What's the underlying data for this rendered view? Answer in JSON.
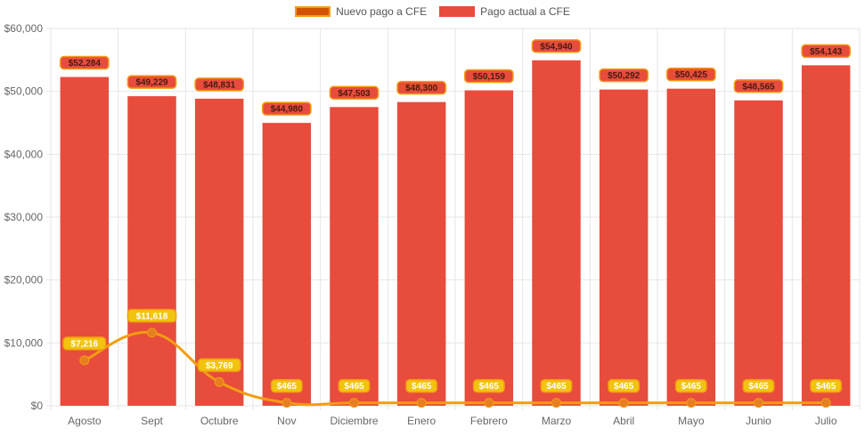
{
  "legend": {
    "line_label": "Nuevo pago a CFE",
    "bar_label": "Pago actual a CFE"
  },
  "colors": {
    "bar": "#e74c3c",
    "line": "#f39c12",
    "line_point": "#e67e22",
    "legend_line_fill": "#d35400",
    "bar_label_bg": "#e74c3c",
    "line_label_bg": "#f1c40f",
    "grid": "#e6e6e6",
    "axis_text": "#666666"
  },
  "chart_data": {
    "type": "bar",
    "categories": [
      "Agosto",
      "Sept",
      "Octubre",
      "Nov",
      "Diciembre",
      "Enero",
      "Febrero",
      "Marzo",
      "Abril",
      "Mayo",
      "Junio",
      "Julio"
    ],
    "series": [
      {
        "name": "Pago actual a CFE",
        "type": "bar",
        "values": [
          52284,
          49229,
          48831,
          44980,
          47503,
          48300,
          50159,
          54940,
          50292,
          50425,
          48565,
          54143
        ],
        "labels": [
          "$52,284",
          "$49,229",
          "$48,831",
          "$44,980",
          "$47,503",
          "$48,300",
          "$50,159",
          "$54,940",
          "$50,292",
          "$50,425",
          "$48,565",
          "$54,143"
        ]
      },
      {
        "name": "Nuevo pago a CFE",
        "type": "line",
        "values": [
          7216,
          11618,
          3769,
          465,
          465,
          465,
          465,
          465,
          465,
          465,
          465,
          465
        ],
        "labels": [
          "$7,216",
          "$11,618",
          "$3,769",
          "$465",
          "$465",
          "$465",
          "$465",
          "$465",
          "$465",
          "$465",
          "$465",
          "$465"
        ]
      }
    ],
    "ylim": [
      0,
      60000
    ],
    "yticks": [
      0,
      10000,
      20000,
      30000,
      40000,
      50000,
      60000
    ],
    "ytick_labels": [
      "$0",
      "$10,000",
      "$20,000",
      "$30,000",
      "$40,000",
      "$50,000",
      "$60,000"
    ],
    "grid": true,
    "legend_position": "top-center"
  }
}
